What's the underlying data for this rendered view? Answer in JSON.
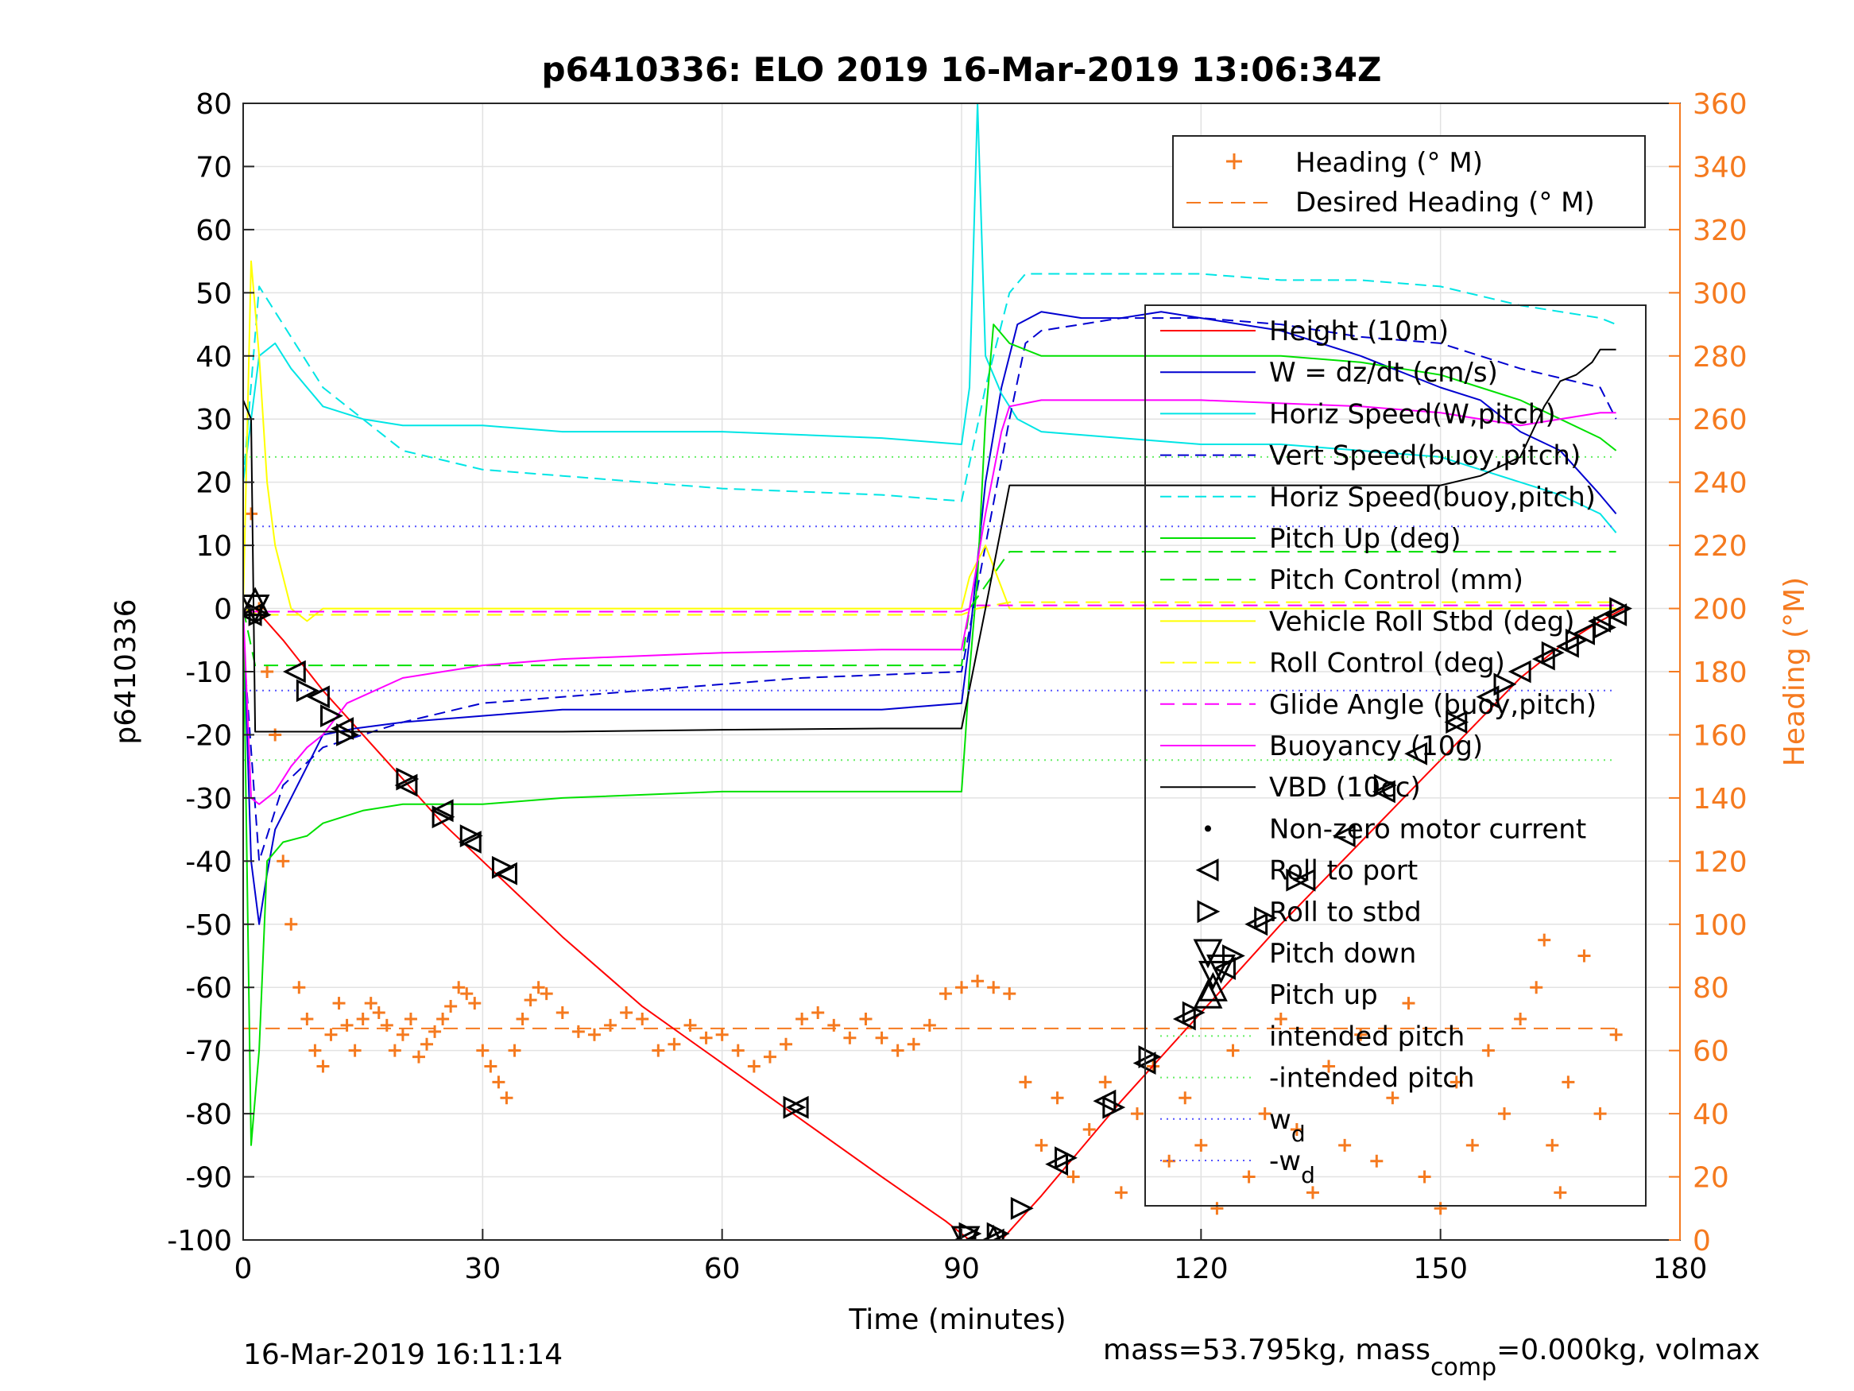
{
  "chart_data": {
    "type": "line",
    "title": "p6410336: ELO 2019 16-Mar-2019 13:06:34Z",
    "xlabel": "Time (minutes)",
    "ylabel": "p6410336",
    "y2label": "Heading (°M)",
    "xlim": [
      0,
      180
    ],
    "ylim": [
      -100,
      80
    ],
    "y2lim": [
      0,
      360
    ],
    "xticks": [
      0,
      30,
      60,
      90,
      120,
      150,
      180
    ],
    "xtick_labels": [
      "0",
      "30",
      "60",
      "90",
      "120",
      "150",
      "180"
    ],
    "yticks": [
      -100,
      -90,
      -80,
      -70,
      -60,
      -50,
      -40,
      -30,
      -20,
      -10,
      0,
      10,
      20,
      30,
      40,
      50,
      60,
      70,
      80
    ],
    "ytick_labels": [
      "-100",
      "-90",
      "-80",
      "-70",
      "-60",
      "-50",
      "-40",
      "-30",
      "-20",
      "-10",
      "0",
      "10",
      "20",
      "30",
      "40",
      "50",
      "60",
      "70",
      "80"
    ],
    "y2ticks": [
      0,
      20,
      40,
      60,
      80,
      100,
      120,
      140,
      160,
      180,
      200,
      220,
      240,
      260,
      280,
      300,
      320,
      340,
      360
    ],
    "y2tick_labels": [
      "0",
      "20",
      "40",
      "60",
      "80",
      "100",
      "120",
      "140",
      "160",
      "180",
      "200",
      "220",
      "240",
      "260",
      "280",
      "300",
      "320",
      "340",
      "360"
    ],
    "grid": true,
    "colors": {
      "red": "#ff0000",
      "blue": "#0000d0",
      "cyan": "#00e5e5",
      "green": "#00e000",
      "yellow": "#ffff00",
      "magenta": "#ff00ff",
      "black": "#000000",
      "orange": "#f57a1f",
      "ltgreen": "#66ee66",
      "dotblue": "#5555ff"
    },
    "series": [
      {
        "name": "Height (10m)",
        "color": "red",
        "dash": "none",
        "x": [
          0,
          1.5,
          5,
          10,
          15,
          20,
          25,
          30,
          35,
          40,
          50,
          60,
          70,
          80,
          88,
          91,
          95,
          100,
          110,
          120,
          130,
          140,
          150,
          160,
          165,
          170,
          173
        ],
        "y": [
          0,
          0,
          -5,
          -13,
          -20,
          -27,
          -34,
          -40,
          -46,
          -52,
          -63,
          -72,
          -81,
          -90,
          -97,
          -100,
          -100,
          -93,
          -78,
          -64,
          -50,
          -37,
          -24,
          -11,
          -6,
          -2,
          0
        ]
      },
      {
        "name": "W = dz/dt (cm/s)",
        "color": "blue",
        "dash": "none",
        "x": [
          0,
          1,
          2,
          3,
          4,
          6,
          8,
          10,
          14,
          20,
          30,
          40,
          60,
          80,
          90,
          91,
          93,
          95,
          97,
          100,
          105,
          110,
          115,
          120,
          125,
          130,
          140,
          150,
          155,
          160,
          165,
          170,
          172
        ],
        "y": [
          0,
          -40,
          -50,
          -42,
          -35,
          -30,
          -25,
          -20,
          -19,
          -18,
          -17,
          -16,
          -16,
          -16,
          -15,
          -5,
          20,
          35,
          45,
          47,
          46,
          46,
          47,
          46,
          45,
          44,
          40,
          35,
          33,
          28,
          25,
          18,
          15
        ]
      },
      {
        "name": "Horiz Speed(W,pitch)",
        "color": "cyan",
        "dash": "none",
        "x": [
          0,
          2,
          4,
          6,
          10,
          15,
          20,
          30,
          40,
          60,
          80,
          90,
          91,
          92,
          93,
          95,
          97,
          100,
          110,
          120,
          130,
          140,
          150,
          155,
          160,
          165,
          170,
          172
        ],
        "y": [
          20,
          40,
          42,
          38,
          32,
          30,
          29,
          29,
          28,
          28,
          27,
          26,
          35,
          80,
          40,
          34,
          30,
          28,
          27,
          26,
          26,
          25,
          24,
          22,
          20,
          18,
          15,
          12
        ]
      },
      {
        "name": "Vert Speed(buoy,pitch)",
        "color": "blue",
        "dash": "14,8",
        "x": [
          0,
          2,
          5,
          10,
          15,
          20,
          30,
          50,
          70,
          90,
          93,
          96,
          98,
          100,
          110,
          120,
          130,
          140,
          150,
          160,
          170,
          172
        ],
        "y": [
          -5,
          -40,
          -28,
          -22,
          -20,
          -18,
          -15,
          -13,
          -11,
          -10,
          10,
          30,
          42,
          44,
          46,
          46,
          45,
          43,
          42,
          38,
          35,
          30
        ]
      },
      {
        "name": "Horiz Speed(buoy,pitch)",
        "color": "cyan",
        "dash": "14,8",
        "x": [
          0,
          2,
          5,
          10,
          20,
          30,
          40,
          60,
          80,
          90,
          93,
          96,
          98,
          100,
          110,
          120,
          130,
          140,
          150,
          160,
          170,
          172
        ],
        "y": [
          20,
          51,
          45,
          35,
          25,
          22,
          21,
          19,
          18,
          17,
          35,
          50,
          53,
          53,
          53,
          53,
          52,
          52,
          51,
          48,
          46,
          45
        ]
      },
      {
        "name": "Pitch Up (deg)",
        "color": "green",
        "dash": "none",
        "x": [
          0,
          1,
          2,
          3,
          5,
          8,
          10,
          15,
          20,
          30,
          40,
          60,
          80,
          90,
          90.5,
          91,
          92,
          93,
          94,
          96,
          100,
          110,
          120,
          130,
          140,
          150,
          155,
          160,
          165,
          170,
          172
        ],
        "y": [
          0,
          -85,
          -70,
          -40,
          -37,
          -36,
          -34,
          -32,
          -31,
          -31,
          -30,
          -29,
          -29,
          -29,
          -20,
          -10,
          5,
          30,
          45,
          42,
          40,
          40,
          40,
          40,
          39,
          37,
          35,
          33,
          30,
          27,
          25
        ]
      },
      {
        "name": "Pitch Control (mm)",
        "color": "green",
        "dash": "18,10",
        "x": [
          0,
          1.5,
          3,
          90,
          91,
          96,
          172
        ],
        "y": [
          0,
          -9,
          -9,
          -9,
          0,
          9,
          9
        ]
      },
      {
        "name": "Vehicle Roll Stbd (deg)",
        "color": "yellow",
        "dash": "none",
        "x": [
          0,
          1,
          2,
          3,
          4,
          5,
          6,
          8,
          10,
          20,
          40,
          60,
          80,
          90,
          91,
          93,
          96,
          100,
          120,
          140,
          160,
          172
        ],
        "y": [
          0,
          55,
          40,
          20,
          10,
          5,
          0,
          -2,
          0,
          0,
          0,
          0,
          0,
          0,
          5,
          10,
          0,
          0,
          0,
          0,
          0,
          0
        ]
      },
      {
        "name": "Roll Control (deg)",
        "color": "yellow",
        "dash": "18,10",
        "x": [
          0,
          2,
          5,
          90,
          92,
          96,
          172
        ],
        "y": [
          0,
          -1,
          -1,
          -1,
          0,
          1,
          1
        ]
      },
      {
        "name": "Glide Angle (buoy,pitch)",
        "color": "magenta",
        "dash": "18,10",
        "x": [
          0,
          2,
          90,
          92,
          96,
          172
        ],
        "y": [
          -0.5,
          -0.5,
          -0.5,
          0.5,
          0.5,
          0.5
        ]
      },
      {
        "name": "Buoyancy (10g)",
        "color": "magenta",
        "dash": "none",
        "x": [
          0,
          1,
          2,
          4,
          6,
          8,
          10,
          13,
          20,
          30,
          40,
          60,
          80,
          90,
          91,
          93,
          95,
          96,
          100,
          110,
          120,
          130,
          140,
          150,
          160,
          165,
          170,
          172
        ],
        "y": [
          0,
          -30,
          -31,
          -29,
          -25,
          -22,
          -20,
          -15,
          -11,
          -9,
          -8,
          -7,
          -6.5,
          -6.5,
          0,
          15,
          28,
          32,
          33,
          33,
          33,
          32.5,
          32,
          31,
          29,
          30,
          31,
          31
        ]
      },
      {
        "name": "VBD (10cc)",
        "color": "black",
        "dash": "none",
        "x": [
          0,
          1,
          1.5,
          5,
          20,
          40,
          60,
          80,
          90,
          93,
          96,
          100,
          120,
          140,
          150,
          155,
          160,
          163,
          165,
          167,
          169,
          170,
          172
        ],
        "y": [
          33,
          30,
          -19.5,
          -19.5,
          -19.5,
          -19.5,
          -19.2,
          -19,
          -19,
          0,
          19.5,
          19.5,
          19.5,
          19.5,
          19.5,
          21,
          24,
          32,
          36,
          37,
          39,
          41,
          41
        ]
      },
      {
        "name": "intended pitch",
        "color": "ltgreen",
        "dash": "2,6",
        "x": [
          0,
          172
        ],
        "y": [
          24,
          24
        ]
      },
      {
        "name": "-intended pitch",
        "color": "ltgreen",
        "dash": "2,6",
        "x": [
          0,
          172
        ],
        "y": [
          -24,
          -24
        ]
      },
      {
        "name": "w_d",
        "color": "dotblue",
        "dash": "2,6",
        "x": [
          0,
          172
        ],
        "y": [
          13,
          13
        ]
      },
      {
        "name": "-w_d",
        "color": "dotblue",
        "dash": "2,6",
        "x": [
          0,
          172
        ],
        "y": [
          -13,
          -13
        ]
      }
    ],
    "heading_series": {
      "name": "Heading (° M)",
      "color": "orange",
      "axis": "right",
      "marker": "plus",
      "x": [
        1,
        2,
        3,
        4,
        5,
        6,
        7,
        8,
        9,
        10,
        11,
        12,
        13,
        14,
        15,
        16,
        17,
        18,
        19,
        20,
        21,
        22,
        23,
        24,
        25,
        26,
        27,
        28,
        29,
        30,
        31,
        32,
        33,
        34,
        35,
        36,
        37,
        38,
        40,
        42,
        44,
        46,
        48,
        50,
        52,
        54,
        56,
        58,
        60,
        62,
        64,
        66,
        68,
        70,
        72,
        74,
        76,
        78,
        80,
        82,
        84,
        86,
        88,
        90,
        92,
        94,
        96,
        98,
        100,
        102,
        104,
        106,
        108,
        110,
        112,
        114,
        116,
        118,
        120,
        122,
        124,
        126,
        128,
        130,
        132,
        134,
        136,
        138,
        140,
        142,
        144,
        146,
        148,
        150,
        152,
        154,
        156,
        158,
        160,
        162,
        163,
        164,
        165,
        166,
        168,
        170,
        172
      ],
      "y": [
        230,
        200,
        180,
        160,
        120,
        100,
        80,
        70,
        60,
        55,
        65,
        75,
        68,
        60,
        70,
        75,
        72,
        68,
        60,
        65,
        70,
        58,
        62,
        66,
        70,
        74,
        80,
        78,
        75,
        60,
        55,
        50,
        45,
        60,
        70,
        76,
        80,
        78,
        72,
        66,
        65,
        68,
        72,
        70,
        60,
        62,
        68,
        64,
        65,
        60,
        55,
        58,
        62,
        70,
        72,
        68,
        64,
        70,
        64,
        60,
        62,
        68,
        78,
        80,
        82,
        80,
        78,
        50,
        30,
        45,
        20,
        35,
        50,
        15,
        40,
        55,
        25,
        45,
        30,
        10,
        60,
        20,
        40,
        70,
        35,
        15,
        55,
        30,
        65,
        25,
        45,
        75,
        20,
        10,
        50,
        30,
        60,
        40,
        70,
        80,
        95,
        30,
        15,
        50,
        90,
        40,
        65
      ]
    },
    "desired_heading_series": {
      "name": "Desired Heading (° M)",
      "color": "orange",
      "axis": "right",
      "dash": "18,10",
      "x": [
        0,
        172
      ],
      "y": [
        67,
        67
      ]
    },
    "markers": {
      "roll_to_port": {
        "x": [
          1,
          6.5,
          9.5,
          12.5,
          20.5,
          25,
          28.5,
          33,
          69.5,
          90.5,
          94,
          102,
          108,
          113,
          118,
          123,
          127,
          133,
          138,
          143,
          147,
          152,
          156,
          160,
          163,
          166,
          168,
          170,
          172
        ],
        "y": [
          -1,
          -10,
          -14,
          -19,
          -28,
          -32,
          -37,
          -42,
          -79,
          -100,
          -100,
          -88,
          -78,
          -72,
          -65,
          -57,
          -50,
          -43,
          -36,
          -29,
          -23,
          -18,
          -14,
          -10,
          -8,
          -6,
          -4,
          -2,
          -1
        ]
      },
      "roll_to_stbd": {
        "x": [
          2,
          8,
          11,
          13,
          20.5,
          25,
          28.5,
          32.5,
          69,
          91,
          94.5,
          97.5,
          103,
          109,
          113.5,
          119,
          124,
          128,
          132,
          143,
          152,
          158,
          164,
          167,
          170.5,
          172.5
        ],
        "y": [
          -1,
          -13,
          -17,
          -20,
          -27,
          -33,
          -36,
          -41,
          -79,
          -99,
          -99,
          -95,
          -87,
          -79,
          -71,
          -64,
          -55,
          -49,
          -43,
          -28,
          -18,
          -12,
          -7,
          -5,
          -3,
          0
        ]
      },
      "pitch_down": {
        "x": [
          1.5,
          90.5,
          121.5,
          122.5
        ],
        "y": [
          0,
          -100,
          -58,
          -57
        ]
      },
      "pitch_up": {
        "x": [
          1.5,
          94,
          121.5
        ],
        "y": [
          1,
          -100,
          -60
        ]
      }
    },
    "legend_main": {
      "location": "right",
      "entries": [
        "Height (10m)",
        "W = dz/dt (cm/s)",
        "Horiz Speed(W,pitch)",
        "Vert Speed(buoy,pitch)",
        "Horiz Speed(buoy,pitch)",
        "Pitch Up (deg)",
        "Pitch Control (mm)",
        "Vehicle Roll Stbd (deg)",
        "Roll Control (deg)",
        "Glide Angle (buoy,pitch)",
        "Buoyancy (10g)",
        "VBD (10cc)",
        "Non-zero motor current",
        "Roll to port",
        "Roll to stbd",
        "Pitch down",
        "Pitch up",
        "intended pitch",
        "-intended pitch"
      ],
      "wd_base": "w",
      "wd_sub": "d",
      "wd_neg_base": "-w"
    },
    "legend_heading": {
      "location": "top-right",
      "entries": [
        "Heading (° M)",
        "Desired Heading (° M)"
      ]
    },
    "footer": {
      "timestamp": "16-Mar-2019 16:11:14",
      "mass_text": "mass=53.795kg, mass",
      "mass_sub": "comp",
      "mass_text2": "=0.000kg, volmax"
    }
  }
}
